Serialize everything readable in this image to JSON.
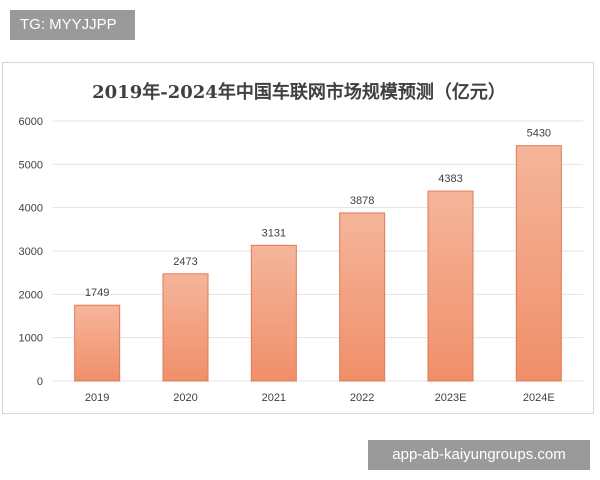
{
  "watermark_tag": "TG: MYYJJPP",
  "site_label": "app-ab-kaiyungroups.com",
  "colors": {
    "bar_fill_top": "#f5b59a",
    "bar_fill_bottom": "#f08f6a",
    "bar_stroke": "#e07a55",
    "grid": "#e3e3e3",
    "text": "#404040"
  },
  "chart_data": {
    "type": "bar",
    "title": "2019年-2024年中国车联网市场规模预测（亿元）",
    "categories": [
      "2019",
      "2020",
      "2021",
      "2022",
      "2023E",
      "2024E"
    ],
    "values": [
      1749,
      2473,
      3131,
      3878,
      4383,
      5430
    ],
    "value_labels": [
      "1749",
      "2473",
      "3131",
      "3878",
      "4383",
      "5430"
    ],
    "ylim": [
      0,
      6000
    ],
    "yticks": [
      0,
      1000,
      2000,
      3000,
      4000,
      5000,
      6000
    ],
    "ytick_labels": [
      "0",
      "1000",
      "2000",
      "3000",
      "4000",
      "5000",
      "6000"
    ],
    "grid": true,
    "legend": "none"
  }
}
